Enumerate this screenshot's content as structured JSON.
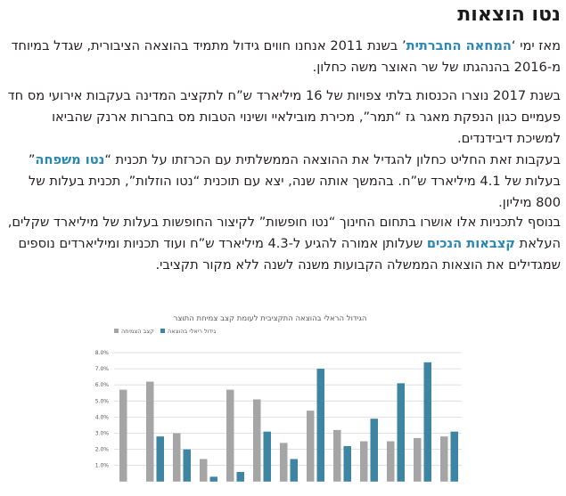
{
  "heading": "נטו הוצאות",
  "paragraphs": [
    {
      "before": "מאז ימי ‘",
      "highlight": "המחאה החברתית",
      "after": "’ בשנת 2011 אנחנו חווים גידול מתמיד בהוצאה הציבורית, שגדל במיוחד מ-2016 בהנהגתו של שר האוצר משה כחלון."
    },
    {
      "text": "בשנת 2017 נוצרו הכנסות בלתי צפויות של 16 מיליארד ש”ח לתקציב המדינה בעקבות אירועי מס חד פעמיים כגון הנפקת מאגר גז “תמר”, מכירת מובילאיי ושינוי הטבות מס בחברות ארנק שהביאו למשיכת דיבידנדים."
    },
    {
      "before": "בעקבות זאת החליט כחלון להגדיל את ההוצאה הממשלתית עם הכרזתו על תכנית “",
      "highlight": "נטו משפחה",
      "after": "” בעלות של 4.1 מיליארד ש”ח. בהמשך אותה שנה, יצא עם תוכנית “נטו הוזלות”, תכנית בעלות של 800 מיליון."
    },
    {
      "before": "בנוסף לתכניות אלו אושרו בתחום החינוך “נטו חופשות” לקיצור החופשות בעלות של מיליארד שקלים, העלאת ",
      "highlight": "קצבאות הנכים",
      "after": " שעלותן אמורה להגיע ל-4.3 מיליארד ש”ח ועוד תכניות ומיליארדים נוספים שמגדילים את הוצאות הממשלה הקבועות משנה לשנה ללא מקור תקציבי."
    }
  ],
  "colors": {
    "highlight": "#2a87b5",
    "series_blue": "#3e84a3",
    "series_gray": "#a5a5a5",
    "grid": "#d9d9d9"
  },
  "chart_data": {
    "type": "bar",
    "title": "הגידול הראלי בהוצאה התקציבית לעומת קצב צמיחת התוצר",
    "ylim": [
      0,
      8
    ],
    "yticks": [
      "8.0%",
      "7.0%",
      "6.0%",
      "5.0%",
      "4.0%",
      "3.0%",
      "2.0%",
      "1.0%"
    ],
    "grid": true,
    "legend_position": "top-left",
    "series": [
      {
        "name": "גידול ריאלי בהוצאה",
        "color": "#3e84a3",
        "values": [
          3.1,
          7.4,
          6.1,
          3.9,
          2.2,
          7.0,
          1.4,
          3.1,
          0.6,
          0.3,
          2.0,
          2.8,
          0.0
        ]
      },
      {
        "name": "קצב הצמיחה",
        "color": "#a5a5a5",
        "values": [
          2.8,
          2.7,
          2.5,
          2.5,
          3.2,
          4.4,
          2.4,
          5.1,
          5.7,
          1.4,
          3.0,
          6.2,
          5.7
        ]
      }
    ]
  }
}
